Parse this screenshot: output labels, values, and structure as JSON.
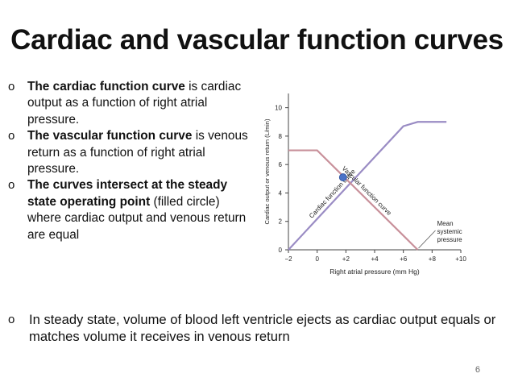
{
  "title": "Cardiac and vascular function curves",
  "bullets": [
    {
      "bold": "The cardiac function curve",
      "text": " is cardiac output as a function of right atrial pressure."
    },
    {
      "bold": "The vascular function curve",
      "text": " is venous return as a function of right atrial pressure."
    },
    {
      "bold": "The curves intersect at the steady state operating point",
      "text": " (filled circle) where cardiac output and venous return are equal"
    }
  ],
  "bottom_bullet": "In steady state, volume of blood left ventricle ejects as cardiac output equals or matches volume it receives in venous return",
  "page_number": "6",
  "bullet_mark": "o",
  "chart_data": {
    "type": "line",
    "xlabel": "Right atrial pressure (mm Hg)",
    "ylabel": "Cardiac output or venous return (L/min)",
    "xlim": [
      -2,
      10
    ],
    "ylim": [
      0,
      11
    ],
    "x_ticks": [
      -2,
      0,
      2,
      4,
      6,
      8,
      10
    ],
    "x_tick_labels": [
      "−2",
      "0",
      "+2",
      "+4",
      "+6",
      "+8",
      "+10"
    ],
    "y_ticks": [
      0,
      2,
      4,
      6,
      8,
      10
    ],
    "y_tick_labels": [
      "0",
      "2",
      "4",
      "6",
      "8",
      "10"
    ],
    "series": [
      {
        "name": "Cardiac function curve",
        "color": "#9a8cc4",
        "x": [
          -2,
          6,
          7,
          9
        ],
        "y": [
          0,
          8.7,
          9.0,
          9.0
        ]
      },
      {
        "name": "Vascular function curve",
        "color": "#c8909a",
        "x": [
          -2,
          0,
          7
        ],
        "y": [
          7,
          7,
          0
        ]
      }
    ],
    "operating_point": {
      "x": 1.8,
      "y": 5.1,
      "color": "#4a72c8"
    },
    "annotation": {
      "text_lines": [
        "Mean",
        "systemic",
        "pressure"
      ],
      "x": 7,
      "y": 0
    }
  }
}
